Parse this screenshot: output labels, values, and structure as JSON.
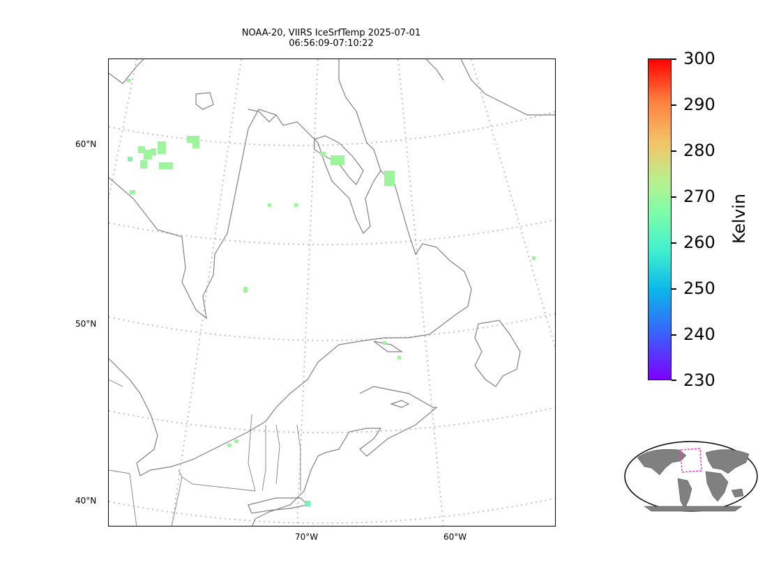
{
  "title": {
    "line1": "NOAA-20, VIIRS IceSrfTemp 2025-07-01",
    "line2": "06:56:09-07:10:22"
  },
  "lat_labels": [
    "60°N",
    "50°N",
    "40°N"
  ],
  "lon_labels": [
    "70°W",
    "60°W"
  ],
  "colorbar": {
    "label": "Kelvin",
    "ticks": [
      "300",
      "290",
      "280",
      "270",
      "260",
      "250",
      "240",
      "230"
    ],
    "range": [
      230,
      300
    ],
    "colormap": "rainbow"
  },
  "colors": {
    "coastline": "#808080",
    "graticule": "#c0c0c0",
    "ice_data": "#9cf59a",
    "ice_data_cold": "#6ff7b0",
    "inset_land": "#808080",
    "inset_box": "#ff33cc"
  },
  "map": {
    "projection": "conic",
    "region": "Northeastern North America / Labrador / Newfoundland",
    "graticule_style": "dotted"
  }
}
